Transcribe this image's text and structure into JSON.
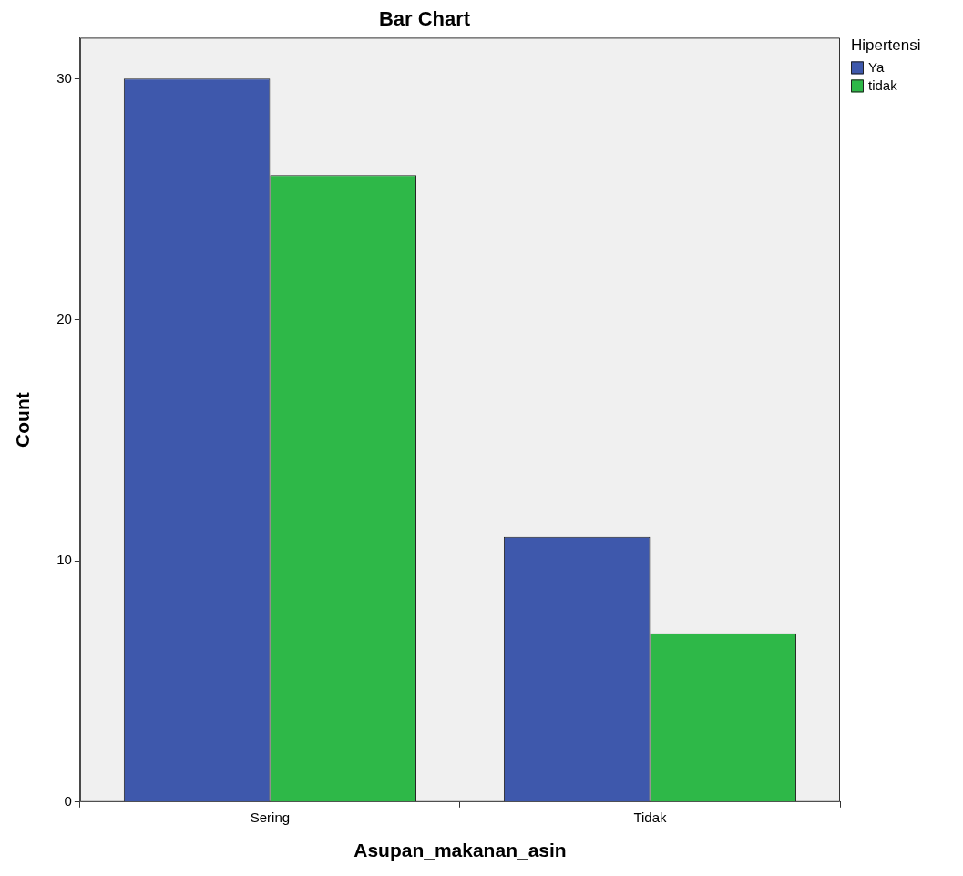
{
  "chart_data": {
    "type": "bar",
    "title": "Bar Chart",
    "xlabel": "Asupan_makanan_asin",
    "ylabel": "Count",
    "legend_title": "Hipertensi",
    "legend": "top right",
    "categories": [
      "Sering",
      "Tidak"
    ],
    "series": [
      {
        "name": "Ya",
        "color": "#3e58ac",
        "values": [
          30,
          11
        ]
      },
      {
        "name": "tidak",
        "color": "#2eb848",
        "values": [
          26,
          7
        ]
      }
    ],
    "ylim": [
      0,
      31.7
    ],
    "yticks": [
      0,
      10,
      20,
      30
    ]
  }
}
